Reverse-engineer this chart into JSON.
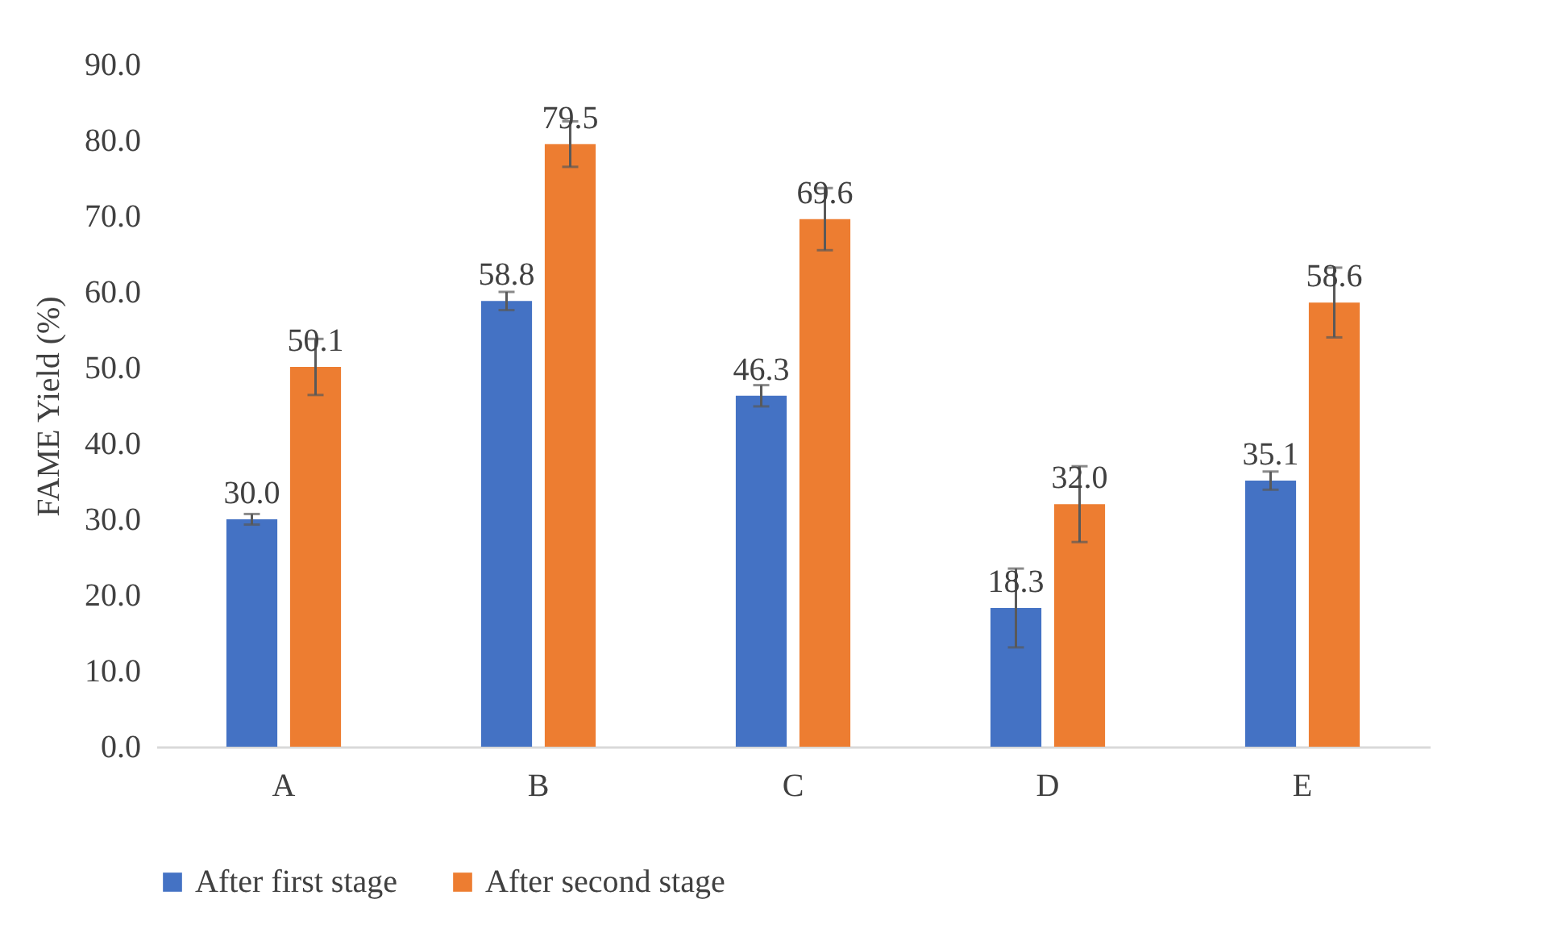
{
  "chart_data": {
    "type": "bar",
    "ylabel": "FAME Yield (%)",
    "categories": [
      "A",
      "B",
      "C",
      "D",
      "E"
    ],
    "series": [
      {
        "name": "After first stage",
        "color": "#4472c4",
        "values": [
          30.0,
          58.8,
          46.3,
          18.3,
          35.1
        ],
        "errors": [
          0.7,
          1.2,
          1.4,
          5.2,
          1.2
        ],
        "value_labels": [
          "30.0",
          "58.8",
          "46.3",
          "18.3",
          "35.1"
        ]
      },
      {
        "name": "After second stage",
        "color": "#ed7d31",
        "values": [
          50.1,
          79.5,
          69.6,
          32.0,
          58.6
        ],
        "errors": [
          3.7,
          3.0,
          4.1,
          5.0,
          4.6
        ],
        "value_labels": [
          "50.1",
          "79.5",
          "69.6",
          "32.0",
          "58.6"
        ]
      }
    ],
    "ylim": [
      0,
      90
    ],
    "yticks": [
      {
        "value": 0,
        "label": "0.0"
      },
      {
        "value": 10,
        "label": "10.0"
      },
      {
        "value": 20,
        "label": "20.0"
      },
      {
        "value": 30,
        "label": "30.0"
      },
      {
        "value": 40,
        "label": "40.0"
      },
      {
        "value": 50,
        "label": "50.0"
      },
      {
        "value": 60,
        "label": "60.0"
      },
      {
        "value": 70,
        "label": "70.0"
      },
      {
        "value": 80,
        "label": "80.0"
      },
      {
        "value": 90,
        "label": "90.0"
      }
    ],
    "legend": "bottom"
  }
}
